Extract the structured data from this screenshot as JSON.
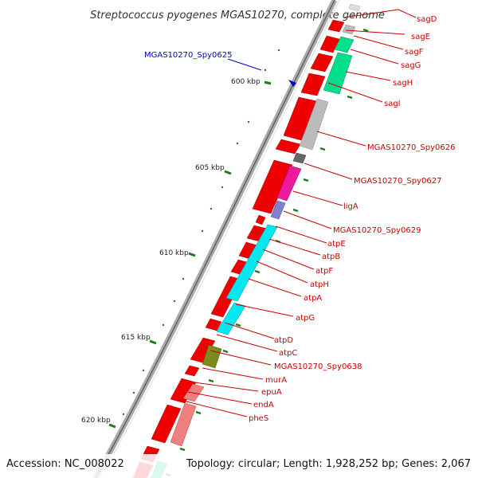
{
  "header": {
    "title": "Streptococcus pyogenes MGAS10270, complete genome"
  },
  "footer": {
    "accession": "Accession: NC_008022",
    "topology": "Topology: circular; Length: 1,928,252 bp; Genes: 2,067"
  },
  "feature_label": {
    "text": "MGAS10270_Spy0625"
  },
  "ruler_labels": [
    "600 kbp",
    "605 kbp",
    "610 kbp",
    "615 kbp",
    "620 kbp"
  ],
  "gene_labels": [
    "sagD",
    "sagE",
    "sagF",
    "sagG",
    "sagH",
    "sagI",
    "MGAS10270_Spy0626",
    "MGAS10270_Spy0627",
    "ligA",
    "MGAS10270_Spy0629",
    "atpE",
    "atpB",
    "atpF",
    "atpH",
    "atpA",
    "atpG",
    "atpD",
    "atpC",
    "MGAS10270_Spy0638",
    "murA",
    "epuA",
    "endA",
    "pheS"
  ],
  "colors": {
    "cds_forward": "#ee0000",
    "label_red": "#cc0000",
    "label_blue": "#0000cc",
    "backbone": "#999999",
    "tick_green": "#1f7a1f",
    "cog_teal": "#00e08c",
    "cog_cyan": "#00e8f0",
    "cog_grey": "#bbbbbb",
    "cog_darkgrey": "#666666",
    "cog_magenta": "#ee1a9e",
    "cog_lavender": "#8080cc",
    "cog_olive": "#7a8c1c",
    "cog_pink": "#f08080"
  }
}
